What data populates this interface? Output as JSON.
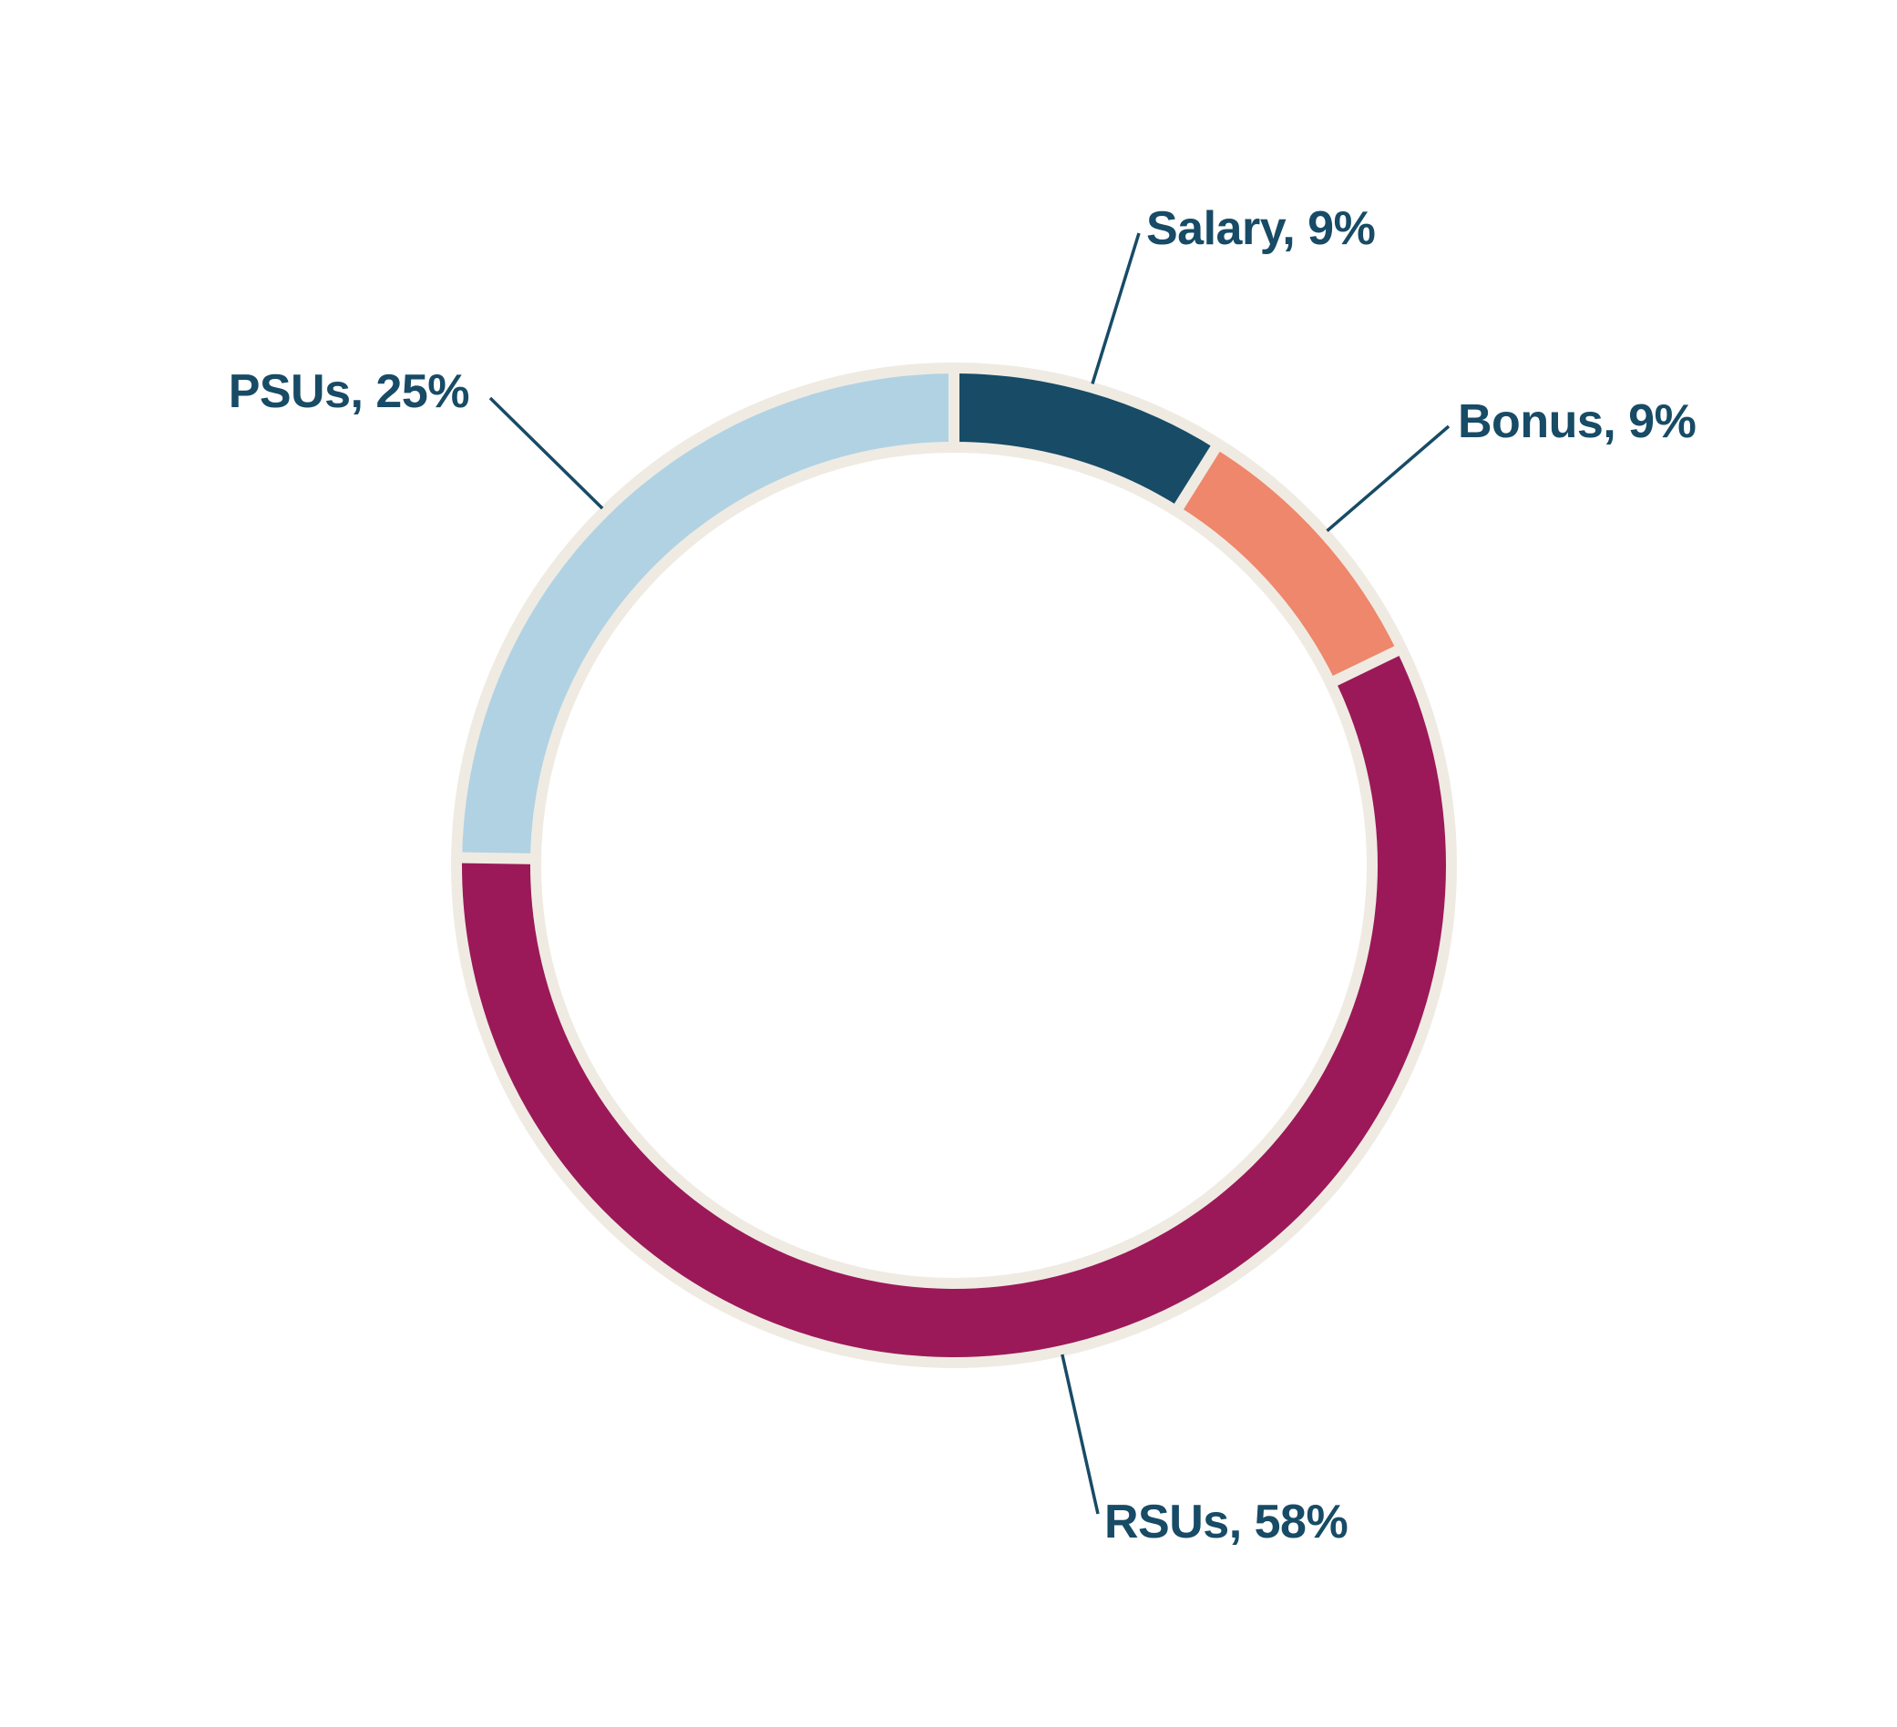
{
  "chart_data": {
    "type": "pie",
    "style": "donut",
    "series": [
      {
        "categories": [
          "Salary",
          "Bonus",
          "RSUs",
          "PSUs"
        ],
        "values": [
          9,
          9,
          58,
          25
        ],
        "labels": [
          "Salary, 9%",
          "Bonus, 9%",
          "RSUs, 58%",
          "PSUs, 25%"
        ],
        "colors": [
          "#174b66",
          "#ee876b",
          "#9b1958",
          "#b1d2e3"
        ]
      }
    ],
    "start_angle": "12 o'clock",
    "direction": "clockwise",
    "ring_outline_color": "#efebe2",
    "leader_line_color": "#174b66",
    "label_color": "#174b66"
  }
}
